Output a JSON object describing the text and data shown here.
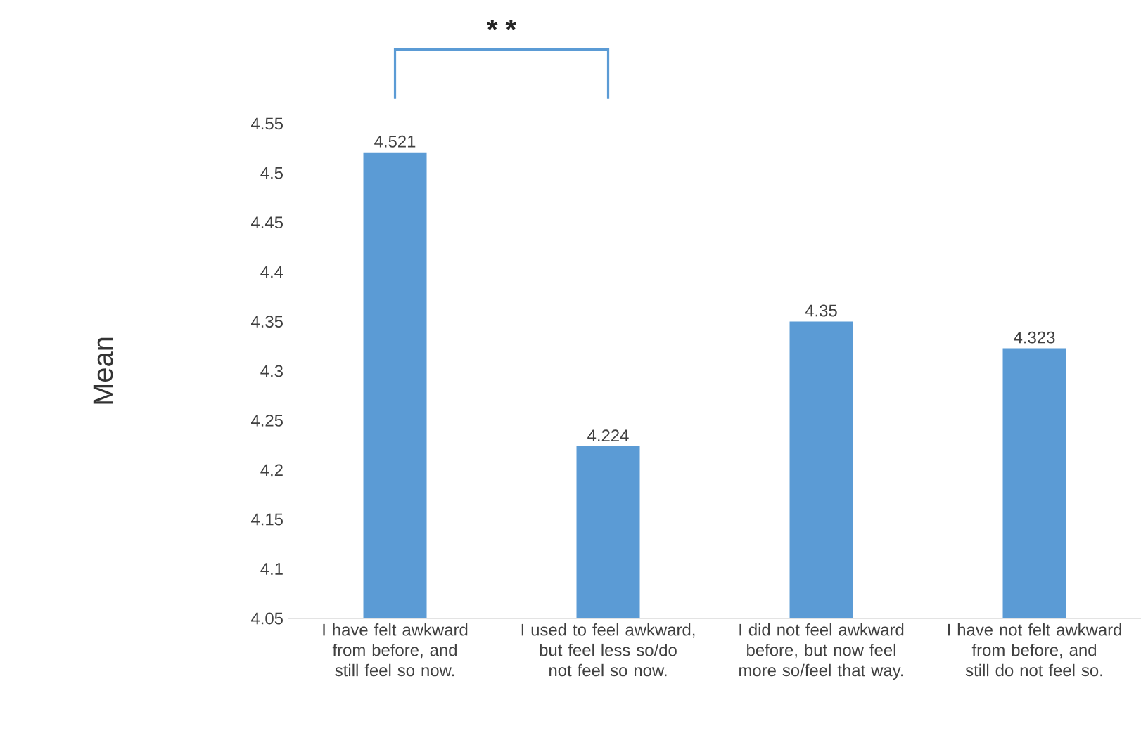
{
  "chart_data": {
    "type": "bar",
    "ylabel": "Mean",
    "categories": [
      "I have felt awkward from before, and still feel so now.",
      "I used to feel awkward, but feel less so/do not feel so now.",
      "I did not feel awkward before, but now feel more so/feel that way.",
      "I have not felt awkward from before, and still do not feel so."
    ],
    "values": [
      4.521,
      4.224,
      4.35,
      4.323
    ],
    "color": "#5b9bd5",
    "ylim": [
      4.05,
      4.55
    ],
    "yticks": [
      4.05,
      4.1,
      4.15,
      4.2,
      4.25,
      4.3,
      4.35,
      4.4,
      4.45,
      4.5,
      4.55
    ],
    "data_labels": true,
    "grid": false,
    "annotations": [
      "* *"
    ]
  }
}
